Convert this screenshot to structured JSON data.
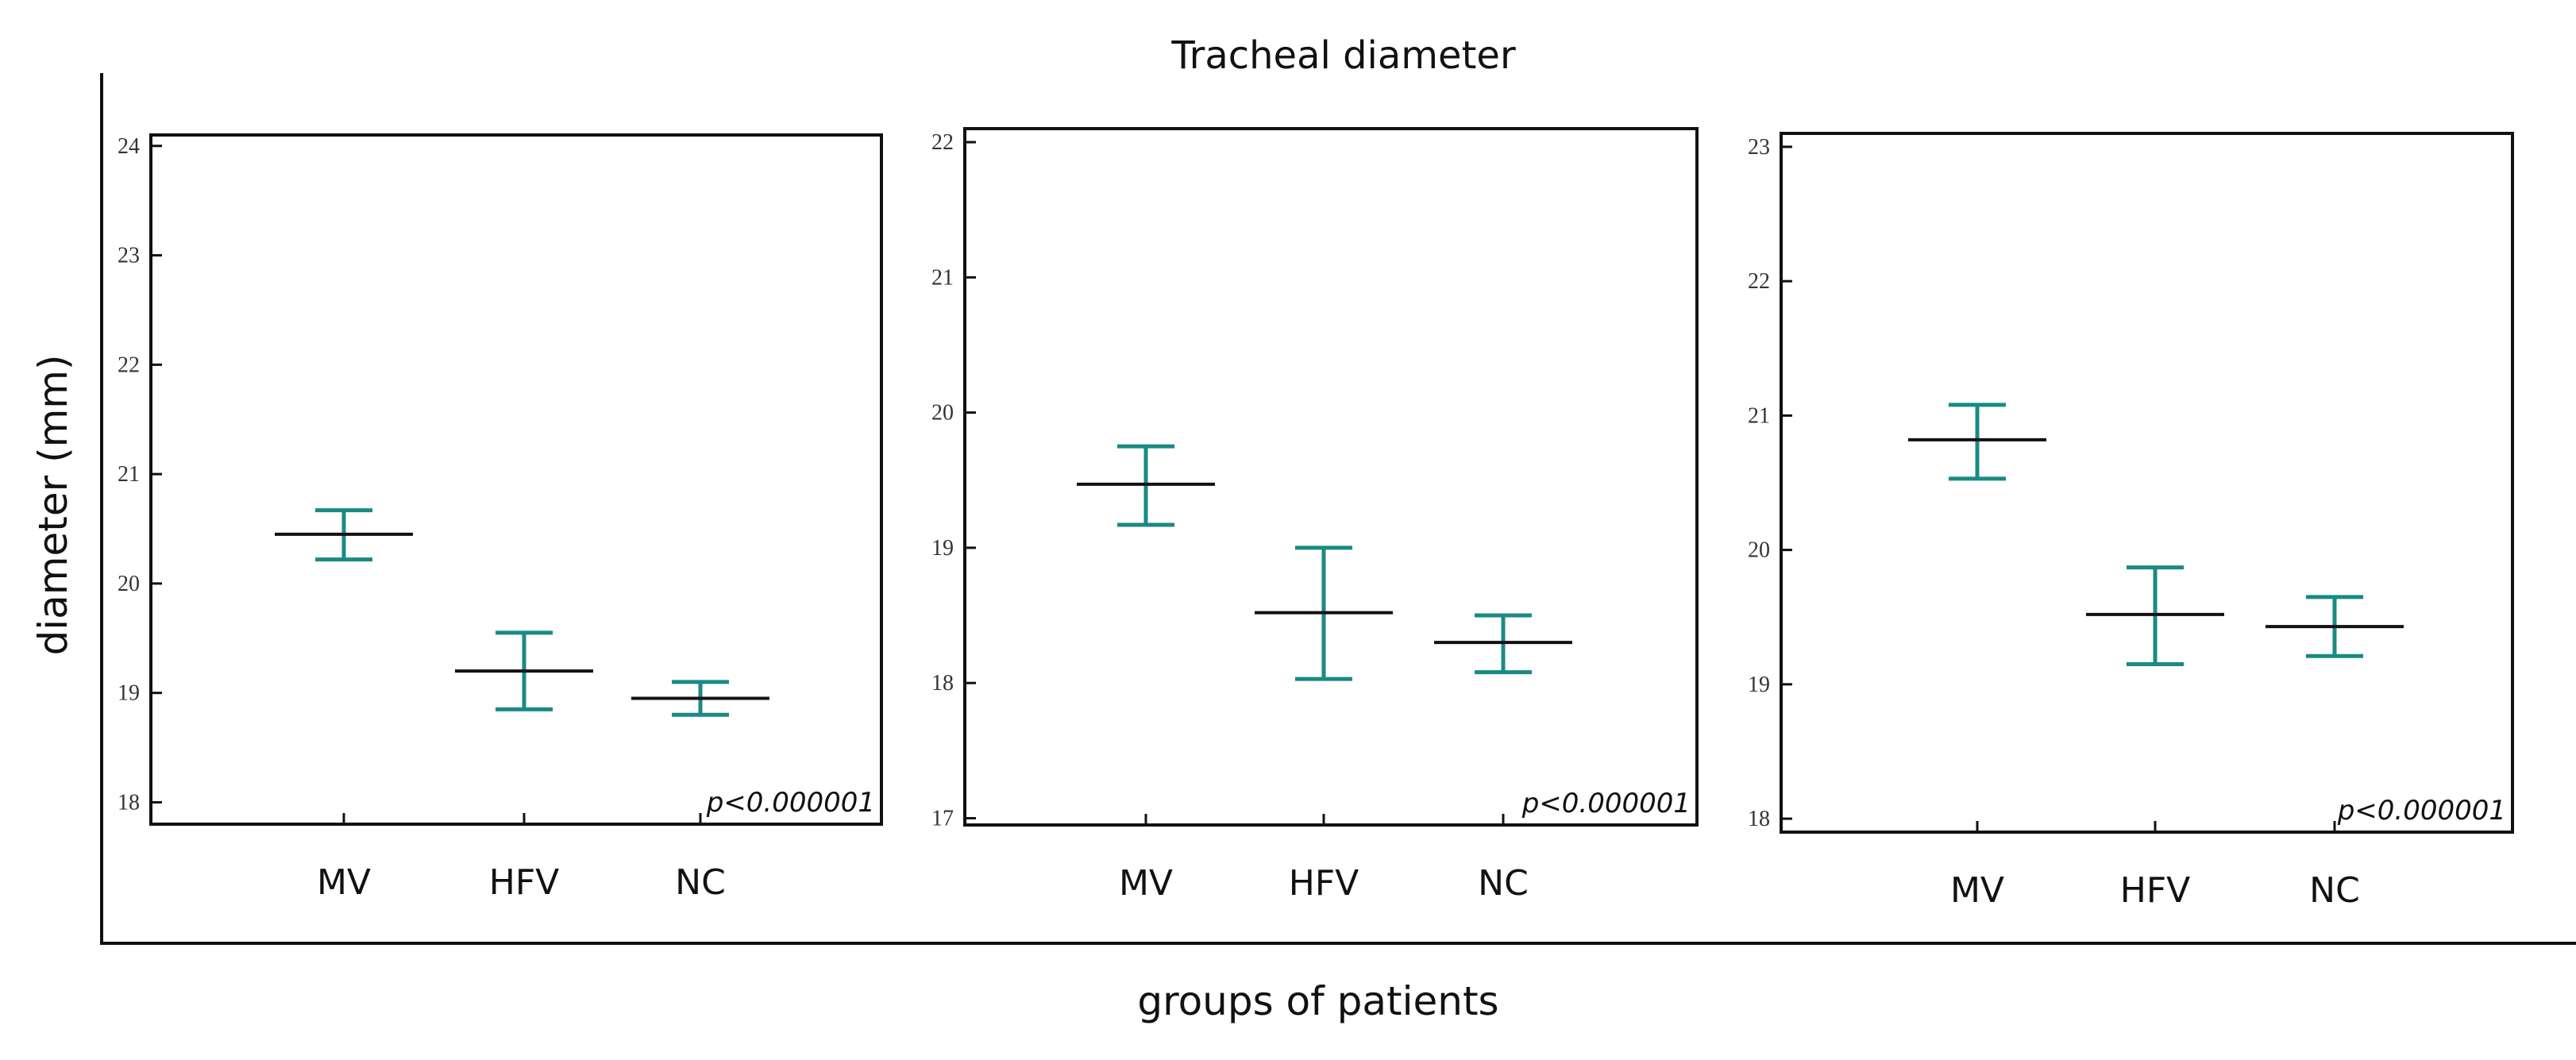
{
  "figure": {
    "title": "Tracheal diameter",
    "ylabel": "diameter (mm)",
    "xlabel": "groups of patients"
  },
  "colors": {
    "errorbar": "#1a8a84",
    "mean_line": "#111111",
    "frame": "#111111",
    "text": "#111111"
  },
  "chart_data": [
    {
      "type": "errorbar",
      "categories": [
        "MV",
        "HFV",
        "NC"
      ],
      "means": [
        20.45,
        19.2,
        18.95
      ],
      "lower": [
        20.22,
        18.85,
        18.8
      ],
      "upper": [
        20.67,
        19.55,
        19.1
      ],
      "ylim": [
        17.8,
        24.1
      ],
      "yticks": [
        18,
        19,
        20,
        21,
        22,
        23,
        24
      ],
      "annotation": "p<0.000001"
    },
    {
      "type": "errorbar",
      "categories": [
        "MV",
        "HFV",
        "NC"
      ],
      "means": [
        19.47,
        18.52,
        18.3
      ],
      "lower": [
        19.17,
        18.03,
        18.08
      ],
      "upper": [
        19.75,
        19.0,
        18.5
      ],
      "ylim": [
        16.95,
        22.1
      ],
      "yticks": [
        17,
        18,
        19,
        20,
        21,
        22
      ],
      "annotation": "p<0.000001"
    },
    {
      "type": "errorbar",
      "categories": [
        "MV",
        "HFV",
        "NC"
      ],
      "means": [
        20.82,
        19.52,
        19.43
      ],
      "lower": [
        20.53,
        19.15,
        19.21
      ],
      "upper": [
        21.08,
        19.87,
        19.65
      ],
      "ylim": [
        17.9,
        23.1
      ],
      "yticks": [
        18,
        19,
        20,
        21,
        22,
        23
      ],
      "annotation": "p<0.000001"
    }
  ]
}
